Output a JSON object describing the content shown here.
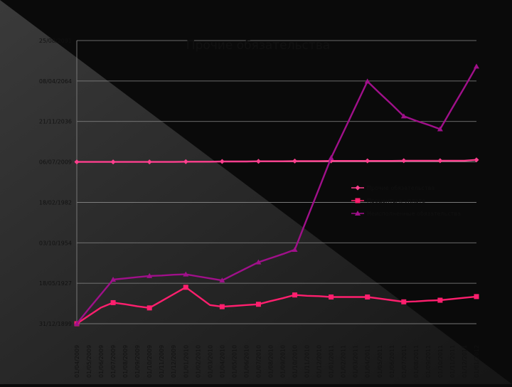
{
  "chart_data": {
    "type": "line",
    "title": "Прочие обязательства",
    "y_ticks": [
      "31/12/1899",
      "18/05/1927",
      "03/10/1954",
      "18/02/1982",
      "06/07/2009",
      "21/11/2036",
      "08/04/2064",
      "25/08/2091"
    ],
    "ylim": [
      0,
      70000
    ],
    "x": [
      "01/04/2009",
      "01/05/2009",
      "01/06/2009",
      "01/07/2009",
      "01/08/2009",
      "01/09/2009",
      "01/10/2009",
      "01/11/2009",
      "01/12/2009",
      "01/01/2010",
      "01/02/2010",
      "01/03/2010",
      "01/04/2010",
      "01/05/2010",
      "01/06/2010",
      "01/07/2010",
      "01/08/2010",
      "01/09/2010",
      "01/10/2010",
      "01/11/2010",
      "01/12/2010",
      "01/01/2011",
      "01/02/2011",
      "01/03/2011",
      "01/04/2011",
      "01/05/2011",
      "01/06/2011",
      "01/07/2011",
      "01/08/2011",
      "01/09/2011",
      "01/10/2011",
      "01/11/2011",
      "01/12/2011",
      "01/01/2012"
    ],
    "marker_indices": [
      0,
      3,
      6,
      9,
      12,
      15,
      18,
      21,
      24,
      27,
      30,
      33
    ],
    "series": [
      {
        "name": "Прочие обязательства",
        "color": "#ff3f8e",
        "marker": "diamond",
        "values": [
          40000,
          40000,
          40000,
          40000,
          40000,
          40000,
          40000,
          40000,
          40000,
          40050,
          40050,
          40050,
          40100,
          40100,
          40100,
          40150,
          40150,
          40150,
          40200,
          40200,
          40200,
          40250,
          40250,
          40250,
          40250,
          40250,
          40250,
          40300,
          40300,
          40300,
          40300,
          40300,
          40300,
          40500
        ]
      },
      {
        "name": "Проценты к уплате",
        "color": "#ff1f6e",
        "marker": "square",
        "values": [
          0,
          2000,
          4000,
          5200,
          4800,
          4300,
          3900,
          5600,
          7300,
          9000,
          6800,
          4600,
          4200,
          4400,
          4600,
          4800,
          5600,
          6300,
          7100,
          6900,
          6800,
          6600,
          6600,
          6600,
          6600,
          6200,
          5800,
          5400,
          5500,
          5700,
          5800,
          6100,
          6400,
          6700
        ]
      },
      {
        "name": "Неисполненные обязательства",
        "color": "#a0108a",
        "marker": "triangle",
        "values": [
          0,
          3700,
          7300,
          10900,
          11200,
          11500,
          11800,
          11900,
          12100,
          12200,
          11700,
          11200,
          10700,
          12200,
          13700,
          15200,
          16200,
          17200,
          18300,
          25900,
          33400,
          41000,
          47300,
          53600,
          59900,
          57000,
          54200,
          51300,
          50200,
          49200,
          48100,
          53300,
          58400,
          63600
        ]
      }
    ],
    "legend_position": "right",
    "grid": true
  }
}
